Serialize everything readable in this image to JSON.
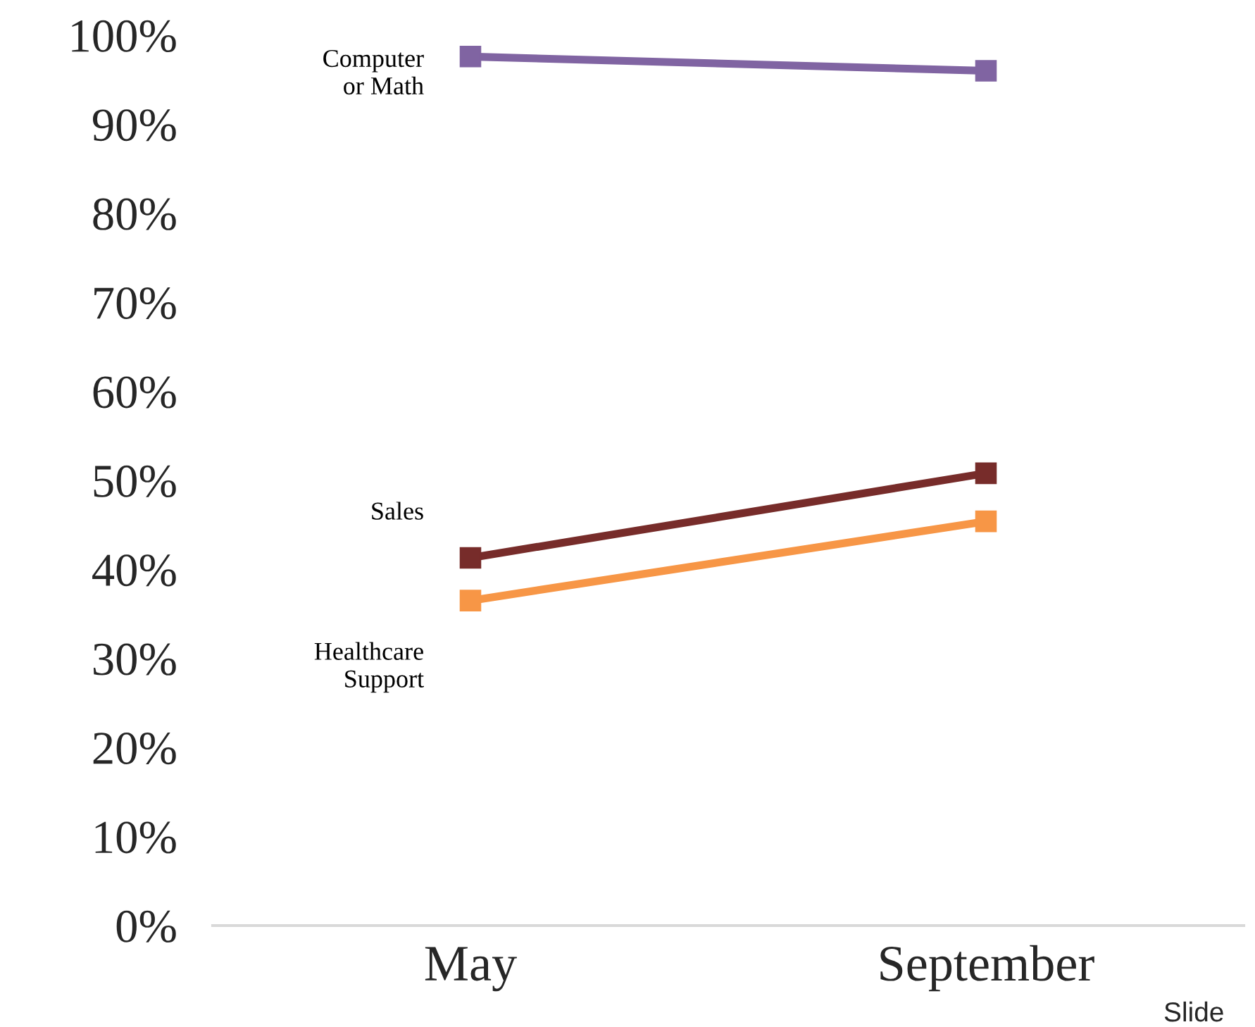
{
  "chart_data": {
    "type": "line",
    "categories": [
      "May",
      "September"
    ],
    "series": [
      {
        "name": "Computer\nor Math",
        "color": "#8064a2",
        "values": [
          97.6,
          96.0
        ]
      },
      {
        "name": "Sales",
        "color": "#772c2a",
        "values": [
          41.3,
          50.8
        ]
      },
      {
        "name": "Healthcare\nSupport",
        "color": "#f79646",
        "values": [
          36.5,
          45.4
        ]
      }
    ],
    "ylim": [
      0,
      100
    ],
    "yticks": [
      {
        "value": 0,
        "label": "0%"
      },
      {
        "value": 10,
        "label": "10%"
      },
      {
        "value": 20,
        "label": "20%"
      },
      {
        "value": 30,
        "label": "30%"
      },
      {
        "value": 40,
        "label": "40%"
      },
      {
        "value": 50,
        "label": "50%"
      },
      {
        "value": 60,
        "label": "60%"
      },
      {
        "value": 70,
        "label": "70%"
      },
      {
        "value": 80,
        "label": "80%"
      },
      {
        "value": 90,
        "label": "90%"
      },
      {
        "value": 100,
        "label": "100%"
      }
    ],
    "marker": "square",
    "line_style": "solid",
    "grid": false,
    "legend": false,
    "annotations": [
      "Slide"
    ]
  }
}
